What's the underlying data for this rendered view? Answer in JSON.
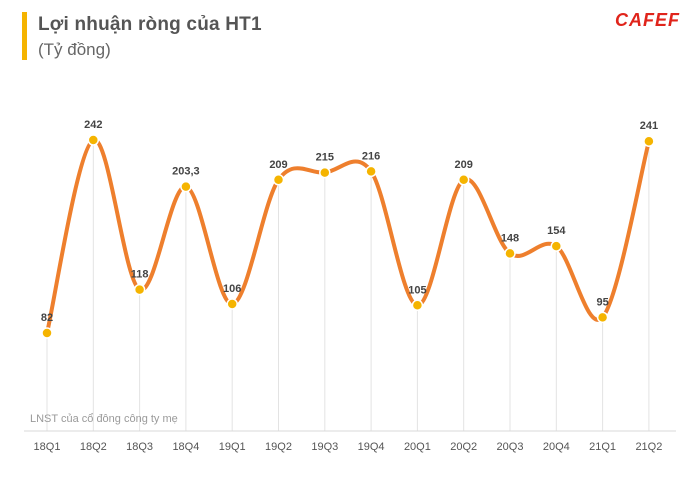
{
  "header": {
    "title": "Lợi nhuận ròng của HT1",
    "subtitle": "(Tỷ đồng)",
    "logo_text": "CAFEF"
  },
  "colors": {
    "line": "#ee7f2d",
    "marker": "#f5b400",
    "accent_bar": "#f5b400",
    "logo": "#e0241b"
  },
  "chart_data": {
    "type": "line",
    "categories": [
      "18Q1",
      "18Q2",
      "18Q3",
      "18Q4",
      "19Q1",
      "19Q2",
      "19Q3",
      "19Q4",
      "20Q1",
      "20Q2",
      "20Q3",
      "20Q4",
      "21Q1",
      "21Q2"
    ],
    "values": [
      82,
      242,
      118,
      203.3,
      106,
      209,
      215,
      216,
      105,
      209,
      148,
      154,
      95,
      241
    ],
    "labels": [
      "82",
      "242",
      "118",
      "203,3",
      "106",
      "209",
      "215",
      "216",
      "105",
      "209",
      "148",
      "154",
      "95",
      "241"
    ],
    "title": "Lợi nhuận ròng của HT1",
    "subtitle": "(Tỷ đồng)",
    "annotation": "LNST của cổ đông công ty mẹ",
    "ylim": [
      20,
      265
    ],
    "grid": "vertical",
    "smooth": true
  }
}
